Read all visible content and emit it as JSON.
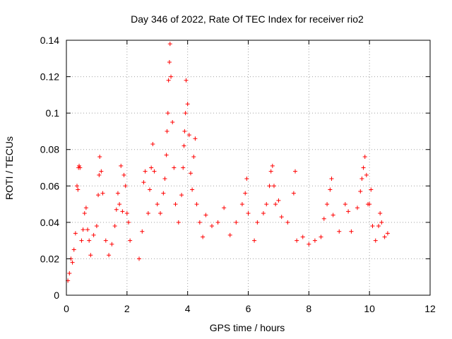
{
  "chart_data": {
    "type": "scatter",
    "title": "Day 346 of 2022, Rate Of TEC Index for receiver rio2",
    "xlabel": "GPS time / hours",
    "ylabel": "ROTI / TECUs",
    "xlim": [
      0,
      12
    ],
    "ylim": [
      0,
      0.14
    ],
    "x_ticks": [
      "0",
      "2",
      "4",
      "6",
      "8",
      "10",
      "12"
    ],
    "x_tick_values": [
      0,
      2,
      4,
      6,
      8,
      10,
      12
    ],
    "y_ticks": [
      "0",
      "0.02",
      "0.04",
      "0.06",
      "0.08",
      "0.1",
      "0.12",
      "0.14"
    ],
    "y_tick_values": [
      0,
      0.02,
      0.04,
      0.06,
      0.08,
      0.1,
      0.12,
      0.14
    ],
    "grid": true,
    "marker": "plus",
    "color": "#ff0000",
    "data_gaps_hours": [
      [
        2.15,
        2.35
      ],
      [
        10.65,
        12
      ]
    ],
    "series": [
      {
        "name": "ROTI rio2",
        "points": [
          [
            0.05,
            0.008
          ],
          [
            0.1,
            0.012
          ],
          [
            0.15,
            0.02
          ],
          [
            0.2,
            0.018
          ],
          [
            0.25,
            0.025
          ],
          [
            0.3,
            0.034
          ],
          [
            0.35,
            0.06
          ],
          [
            0.38,
            0.058
          ],
          [
            0.4,
            0.07
          ],
          [
            0.42,
            0.071
          ],
          [
            0.45,
            0.07
          ],
          [
            0.5,
            0.03
          ],
          [
            0.55,
            0.036
          ],
          [
            0.6,
            0.045
          ],
          [
            0.65,
            0.048
          ],
          [
            0.7,
            0.036
          ],
          [
            0.75,
            0.03
          ],
          [
            0.8,
            0.022
          ],
          [
            0.9,
            0.033
          ],
          [
            1.0,
            0.038
          ],
          [
            1.05,
            0.055
          ],
          [
            1.08,
            0.066
          ],
          [
            1.1,
            0.076
          ],
          [
            1.15,
            0.068
          ],
          [
            1.2,
            0.056
          ],
          [
            1.3,
            0.03
          ],
          [
            1.4,
            0.022
          ],
          [
            1.5,
            0.028
          ],
          [
            1.6,
            0.038
          ],
          [
            1.65,
            0.047
          ],
          [
            1.7,
            0.056
          ],
          [
            1.75,
            0.05
          ],
          [
            1.8,
            0.071
          ],
          [
            1.85,
            0.046
          ],
          [
            1.9,
            0.066
          ],
          [
            1.95,
            0.06
          ],
          [
            2.0,
            0.045
          ],
          [
            2.05,
            0.04
          ],
          [
            2.1,
            0.03
          ],
          [
            2.4,
            0.02
          ],
          [
            2.5,
            0.035
          ],
          [
            2.55,
            0.062
          ],
          [
            2.6,
            0.068
          ],
          [
            2.7,
            0.045
          ],
          [
            2.75,
            0.058
          ],
          [
            2.8,
            0.07
          ],
          [
            2.85,
            0.083
          ],
          [
            2.9,
            0.068
          ],
          [
            3.0,
            0.05
          ],
          [
            3.1,
            0.045
          ],
          [
            3.2,
            0.056
          ],
          [
            3.25,
            0.064
          ],
          [
            3.3,
            0.077
          ],
          [
            3.32,
            0.09
          ],
          [
            3.35,
            0.1
          ],
          [
            3.37,
            0.118
          ],
          [
            3.4,
            0.128
          ],
          [
            3.42,
            0.138
          ],
          [
            3.45,
            0.12
          ],
          [
            3.5,
            0.095
          ],
          [
            3.55,
            0.07
          ],
          [
            3.6,
            0.05
          ],
          [
            3.7,
            0.04
          ],
          [
            3.8,
            0.055
          ],
          [
            3.85,
            0.07
          ],
          [
            3.88,
            0.082
          ],
          [
            3.9,
            0.09
          ],
          [
            3.93,
            0.1
          ],
          [
            3.95,
            0.118
          ],
          [
            4.0,
            0.105
          ],
          [
            4.05,
            0.088
          ],
          [
            4.1,
            0.067
          ],
          [
            4.15,
            0.058
          ],
          [
            4.2,
            0.076
          ],
          [
            4.25,
            0.086
          ],
          [
            4.3,
            0.05
          ],
          [
            4.4,
            0.04
          ],
          [
            4.5,
            0.032
          ],
          [
            4.6,
            0.044
          ],
          [
            4.8,
            0.038
          ],
          [
            5.0,
            0.04
          ],
          [
            5.2,
            0.048
          ],
          [
            5.4,
            0.033
          ],
          [
            5.6,
            0.04
          ],
          [
            5.8,
            0.05
          ],
          [
            5.9,
            0.056
          ],
          [
            5.95,
            0.064
          ],
          [
            6.0,
            0.045
          ],
          [
            6.2,
            0.03
          ],
          [
            6.3,
            0.04
          ],
          [
            6.5,
            0.045
          ],
          [
            6.6,
            0.05
          ],
          [
            6.7,
            0.06
          ],
          [
            6.75,
            0.068
          ],
          [
            6.8,
            0.071
          ],
          [
            6.85,
            0.06
          ],
          [
            6.9,
            0.05
          ],
          [
            7.0,
            0.052
          ],
          [
            7.1,
            0.043
          ],
          [
            7.3,
            0.04
          ],
          [
            7.5,
            0.056
          ],
          [
            7.55,
            0.068
          ],
          [
            7.6,
            0.03
          ],
          [
            7.8,
            0.032
          ],
          [
            8.0,
            0.028
          ],
          [
            8.2,
            0.03
          ],
          [
            8.4,
            0.032
          ],
          [
            8.5,
            0.042
          ],
          [
            8.6,
            0.05
          ],
          [
            8.7,
            0.058
          ],
          [
            8.75,
            0.064
          ],
          [
            8.8,
            0.044
          ],
          [
            9.0,
            0.035
          ],
          [
            9.2,
            0.05
          ],
          [
            9.3,
            0.046
          ],
          [
            9.4,
            0.035
          ],
          [
            9.6,
            0.048
          ],
          [
            9.7,
            0.057
          ],
          [
            9.75,
            0.064
          ],
          [
            9.8,
            0.07
          ],
          [
            9.85,
            0.076
          ],
          [
            9.9,
            0.066
          ],
          [
            9.95,
            0.05
          ],
          [
            10.0,
            0.05
          ],
          [
            10.05,
            0.058
          ],
          [
            10.1,
            0.038
          ],
          [
            10.2,
            0.03
          ],
          [
            10.3,
            0.038
          ],
          [
            10.35,
            0.045
          ],
          [
            10.4,
            0.04
          ],
          [
            10.5,
            0.032
          ],
          [
            10.6,
            0.034
          ]
        ]
      }
    ]
  }
}
